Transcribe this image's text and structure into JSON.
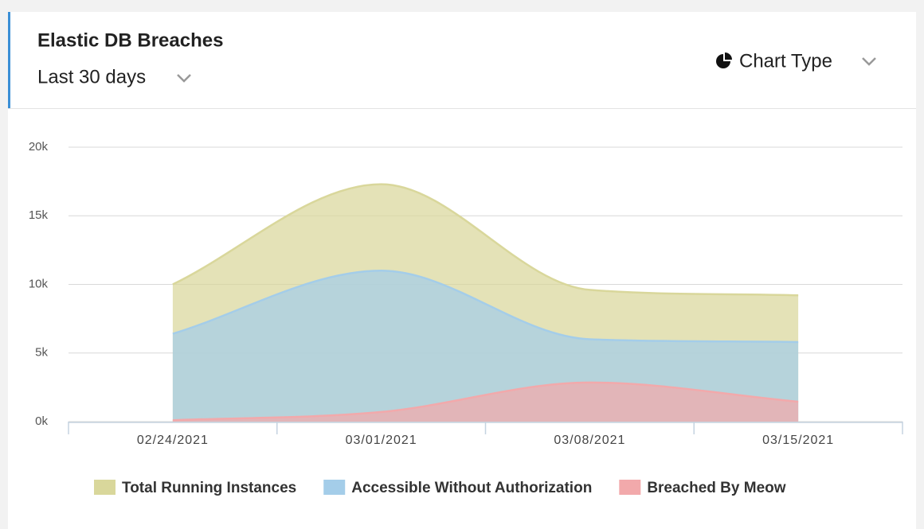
{
  "header": {
    "title": "Elastic DB Breaches",
    "period": "Last 30 days",
    "chart_type": "Chart Type"
  },
  "chart_data": {
    "type": "area",
    "categories": [
      "02/24/2021",
      "03/01/2021",
      "03/08/2021",
      "03/15/2021"
    ],
    "series": [
      {
        "name": "Total Running Instances",
        "color": "#d9d79b",
        "values": [
          10000,
          17300,
          9600,
          9200
        ]
      },
      {
        "name": "Accessible Without Authorization",
        "color": "#a4cde9",
        "values": [
          6400,
          11000,
          6000,
          5800
        ]
      },
      {
        "name": "Breached By Meow",
        "color": "#f2a9ab",
        "values": [
          100,
          700,
          2850,
          1450
        ]
      }
    ],
    "ylim": [
      0,
      20000
    ],
    "yticks": [
      {
        "value": 0,
        "label": "0k"
      },
      {
        "value": 5000,
        "label": "5k"
      },
      {
        "value": 10000,
        "label": "10k"
      },
      {
        "value": 15000,
        "label": "15k"
      },
      {
        "value": 20000,
        "label": "20k"
      }
    ],
    "grid": true
  }
}
